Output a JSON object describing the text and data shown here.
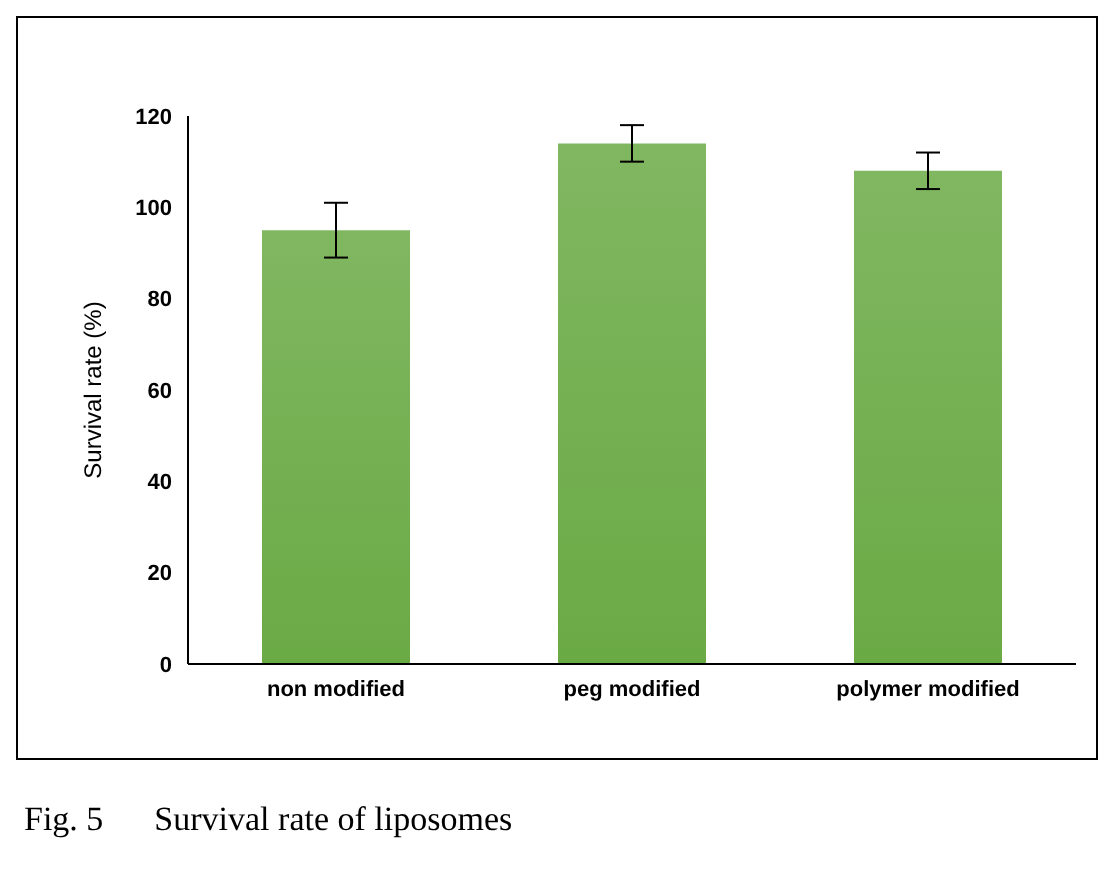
{
  "chart_data": {
    "type": "bar",
    "ylabel": "Survival rate (%)",
    "categories": [
      "non modified",
      "peg modified",
      "polymer modified"
    ],
    "values": [
      95,
      114,
      108
    ],
    "errors": [
      6,
      4,
      4
    ],
    "color": "#6aaa45",
    "ylim": [
      0,
      120
    ],
    "yticks": [
      0,
      20,
      40,
      60,
      80,
      100,
      120
    ],
    "grid": false,
    "annotations": [
      "Fig. 5      Survival rate of liposomes"
    ]
  }
}
